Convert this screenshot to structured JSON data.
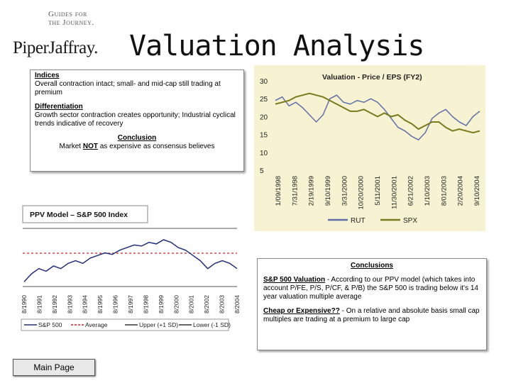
{
  "logo": {
    "tagline1": "Guides for",
    "tagline2": "the Journey.",
    "brand": "PiperJaffray."
  },
  "title": "Valuation Analysis",
  "left_box": {
    "indices_head": "Indices",
    "indices_text": "Overall contraction intact; small- and mid-cap still trading at premium",
    "diff_head": "Differentiation",
    "diff_text": "Growth sector contraction creates opportunity; Industrial cyclical trends indicative of recovery",
    "concl_head": "Conclusion",
    "concl_pre": "Market ",
    "concl_not": "NOT",
    "concl_post": " as expensive as consensus believes"
  },
  "conclusions": {
    "title": "Conclusions",
    "p1_head": "S&P 500 Valuation",
    "p1_text": " - According to our PPV model (which takes into account P/FE, P/S, P/CF, & P/B) the S&P 500 is trading below it's 14 year valuation multiple average",
    "p2_head": "Cheap or Expensive??",
    "p2_text": " - On a relative and absolute basis small cap multiples are trading at a premium to large cap"
  },
  "main_button": "Main Page",
  "chart_data": [
    {
      "type": "line",
      "title": "Valuation - Price / EPS (FY2)",
      "ylim": [
        5,
        30
      ],
      "yticks": [
        "30",
        "25",
        "20",
        "15",
        "10",
        "5"
      ],
      "xticks": [
        "1/09/1998",
        "7/31/1998",
        "2/19/1999",
        "9/10/1999",
        "3/31/2000",
        "10/20/2000",
        "5/11/2001",
        "11/30/2001",
        "6/21/2002",
        "1/10/2003",
        "8/01/2003",
        "2/20/2004",
        "9/10/2004"
      ],
      "legend": [
        "RUT",
        "SPX"
      ],
      "colors": {
        "RUT": "#5e6fa8",
        "SPX": "#7a7a1e"
      },
      "series": [
        {
          "name": "RUT",
          "values": [
            24.5,
            25.5,
            23,
            24,
            22.5,
            20.5,
            18.5,
            20.5,
            25,
            26,
            24,
            23.5,
            24.5,
            24,
            25,
            24,
            22,
            19.5,
            17,
            16,
            14.5,
            13.5,
            15.5,
            19.5,
            21,
            22,
            20,
            18.5,
            17.5,
            20,
            21.5
          ]
        },
        {
          "name": "SPX",
          "values": [
            23.5,
            24,
            24.5,
            25.5,
            26,
            26.5,
            26,
            25.5,
            24.5,
            23.5,
            22.5,
            21.5,
            21.5,
            22,
            21,
            20,
            21,
            20,
            20.5,
            19,
            18,
            16.5,
            17.5,
            18.5,
            18.5,
            17,
            16,
            16.5,
            16,
            15.5,
            16
          ]
        }
      ]
    },
    {
      "type": "line",
      "title": "PPV Model – S&P 500 Index",
      "xticks": [
        "8/1990",
        "8/1991",
        "8/1992",
        "8/1993",
        "8/1994",
        "8/1995",
        "8/1996",
        "8/1997",
        "8/1998",
        "8/1999",
        "8/2000",
        "8/2001",
        "8/2002",
        "8/2003",
        "8/2004"
      ],
      "legend": [
        "S&P 500",
        "Average",
        "Upper (+1 SD)",
        "Lower (-1 SD)"
      ],
      "colors": {
        "S&P 500": "#22307a",
        "Average": "#cc2222",
        "Upper": "#333333",
        "Lower": "#333333"
      },
      "series": [
        {
          "name": "S&P 500",
          "values": [
            0.2,
            0.35,
            0.45,
            0.4,
            0.5,
            0.45,
            0.55,
            0.6,
            0.55,
            0.65,
            0.7,
            0.75,
            0.72,
            0.8,
            0.85,
            0.9,
            0.88,
            0.95,
            0.92,
            1.0,
            0.95,
            0.85,
            0.8,
            0.7,
            0.6,
            0.45,
            0.55,
            0.6,
            0.55,
            0.45
          ]
        }
      ]
    }
  ]
}
